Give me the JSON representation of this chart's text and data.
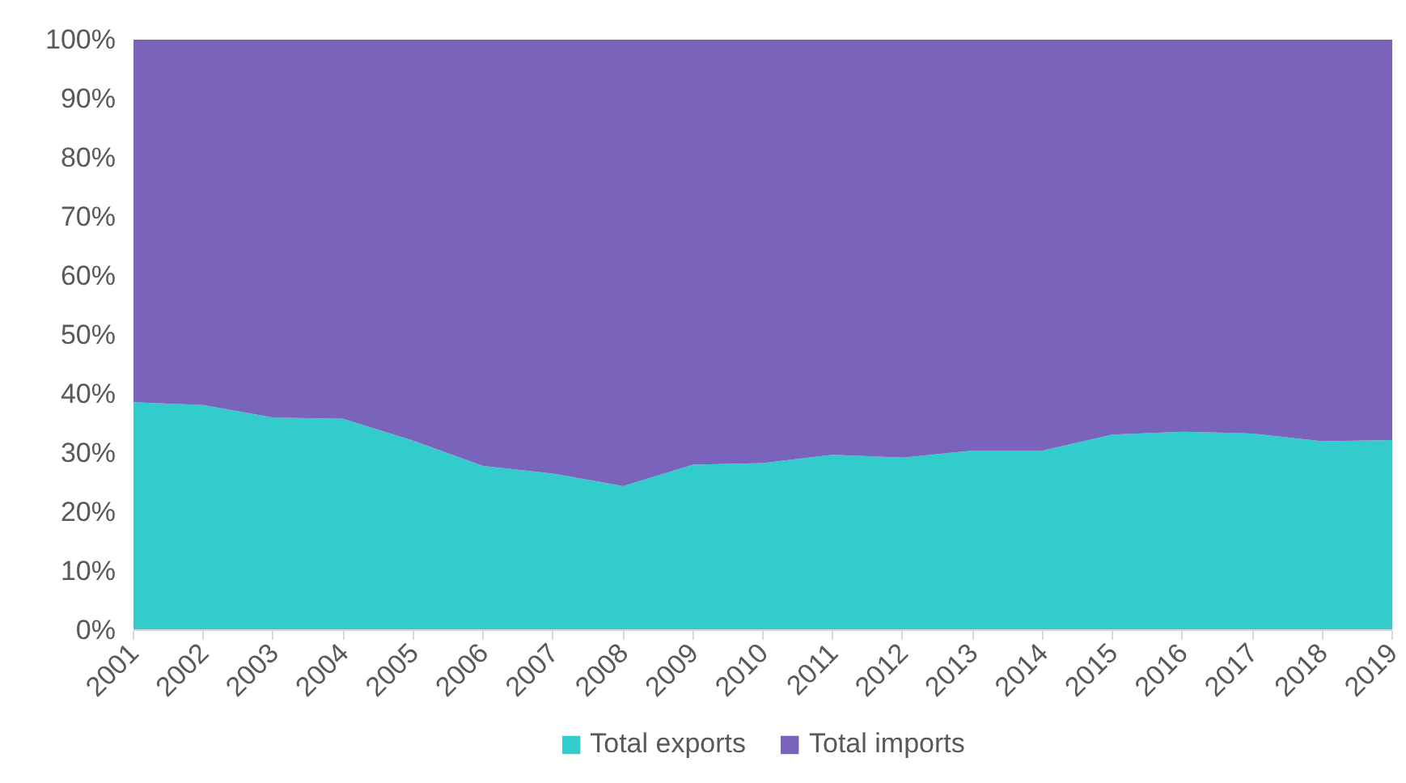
{
  "chart_data": {
    "type": "area",
    "stacked": true,
    "categories": [
      "2001",
      "2002",
      "2003",
      "2004",
      "2005",
      "2006",
      "2007",
      "2008",
      "2009",
      "2010",
      "2011",
      "2012",
      "2013",
      "2014",
      "2015",
      "2016",
      "2017",
      "2018",
      "2019"
    ],
    "series": [
      {
        "name": "Total exports",
        "color": "#33cccc",
        "values": [
          38.6,
          38.1,
          36.0,
          35.8,
          32.1,
          27.8,
          26.5,
          24.4,
          28.0,
          28.3,
          29.7,
          29.2,
          30.4,
          30.4,
          33.1,
          33.6,
          33.3,
          32.0,
          32.2
        ]
      },
      {
        "name": "Total imports",
        "color": "#7963bb",
        "values": [
          61.4,
          61.9,
          64.0,
          64.2,
          67.9,
          72.2,
          73.5,
          75.6,
          72.0,
          71.7,
          70.3,
          70.8,
          69.6,
          69.6,
          66.9,
          66.4,
          66.7,
          68.0,
          67.8
        ]
      }
    ],
    "ylim": [
      0,
      100
    ],
    "yticks": [
      {
        "value": 0,
        "label": "0%"
      },
      {
        "value": 10,
        "label": "10%"
      },
      {
        "value": 20,
        "label": "20%"
      },
      {
        "value": 30,
        "label": "30%"
      },
      {
        "value": 40,
        "label": "40%"
      },
      {
        "value": 50,
        "label": "50%"
      },
      {
        "value": 60,
        "label": "60%"
      },
      {
        "value": 70,
        "label": "70%"
      },
      {
        "value": 80,
        "label": "80%"
      },
      {
        "value": 90,
        "label": "90%"
      },
      {
        "value": 100,
        "label": "100%"
      }
    ],
    "grid": false,
    "legend": "bottom"
  }
}
